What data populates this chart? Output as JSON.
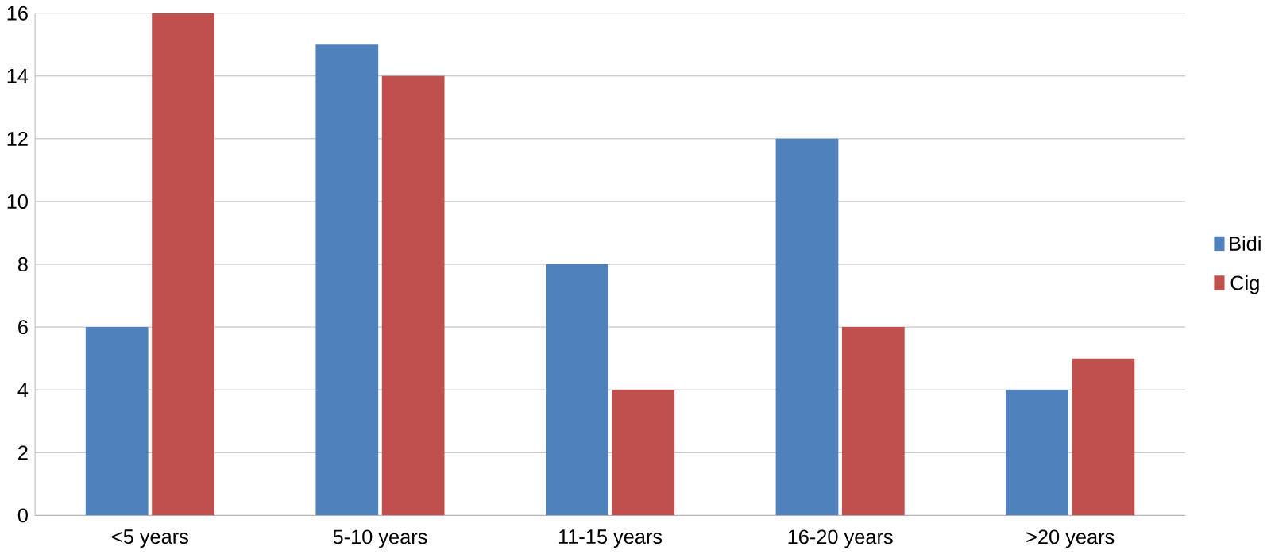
{
  "chart_data": {
    "type": "bar",
    "categories": [
      "<5 years",
      "5-10 years",
      "11-15 years",
      "16-20 years",
      ">20 years"
    ],
    "series": [
      {
        "name": "Bidi",
        "color": "#4f81bd",
        "values": [
          6,
          15,
          8,
          12,
          4
        ]
      },
      {
        "name": "Cig",
        "color": "#c0504d",
        "values": [
          16,
          14,
          4,
          6,
          5
        ]
      }
    ],
    "ylim": [
      0,
      16
    ],
    "yticks": [
      0,
      2,
      4,
      6,
      8,
      10,
      12,
      14,
      16
    ],
    "grid": "y",
    "legend": "right"
  }
}
